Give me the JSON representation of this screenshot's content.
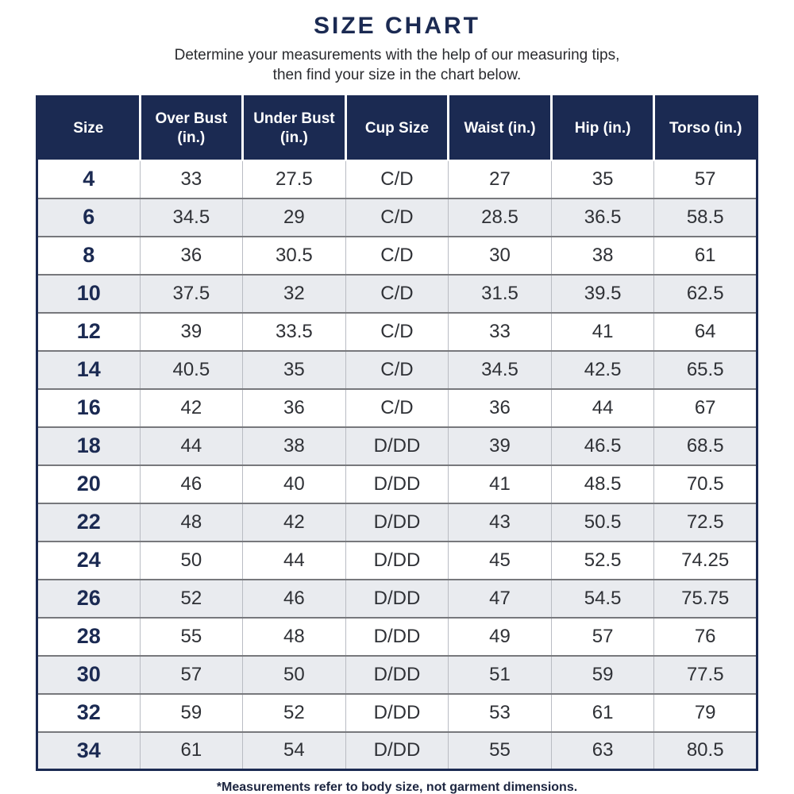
{
  "title": "SIZE CHART",
  "subtitle_line1": "Determine your measurements with the help of our measuring tips,",
  "subtitle_line2": "then find your size in the chart below.",
  "footnote": "*Measurements refer to body size, not garment dimensions.",
  "colors": {
    "header_bg": "#1b2a52",
    "header_text": "#ffffff",
    "title_navy": "#1b2a52",
    "stripe_row": "#e9ebef",
    "row_divider": "#77787c",
    "cell_divider": "#b9bcc3",
    "body_text": "#2f3136"
  },
  "chart_data": {
    "type": "table",
    "title": "SIZE CHART",
    "columns": [
      "Size",
      "Over Bust (in.)",
      "Under Bust (in.)",
      "Cup Size",
      "Waist (in.)",
      "Hip (in.)",
      "Torso (in.)"
    ],
    "rows": [
      [
        "4",
        "33",
        "27.5",
        "C/D",
        "27",
        "35",
        "57"
      ],
      [
        "6",
        "34.5",
        "29",
        "C/D",
        "28.5",
        "36.5",
        "58.5"
      ],
      [
        "8",
        "36",
        "30.5",
        "C/D",
        "30",
        "38",
        "61"
      ],
      [
        "10",
        "37.5",
        "32",
        "C/D",
        "31.5",
        "39.5",
        "62.5"
      ],
      [
        "12",
        "39",
        "33.5",
        "C/D",
        "33",
        "41",
        "64"
      ],
      [
        "14",
        "40.5",
        "35",
        "C/D",
        "34.5",
        "42.5",
        "65.5"
      ],
      [
        "16",
        "42",
        "36",
        "C/D",
        "36",
        "44",
        "67"
      ],
      [
        "18",
        "44",
        "38",
        "D/DD",
        "39",
        "46.5",
        "68.5"
      ],
      [
        "20",
        "46",
        "40",
        "D/DD",
        "41",
        "48.5",
        "70.5"
      ],
      [
        "22",
        "48",
        "42",
        "D/DD",
        "43",
        "50.5",
        "72.5"
      ],
      [
        "24",
        "50",
        "44",
        "D/DD",
        "45",
        "52.5",
        "74.25"
      ],
      [
        "26",
        "52",
        "46",
        "D/DD",
        "47",
        "54.5",
        "75.75"
      ],
      [
        "28",
        "55",
        "48",
        "D/DD",
        "49",
        "57",
        "76"
      ],
      [
        "30",
        "57",
        "50",
        "D/DD",
        "51",
        "59",
        "77.5"
      ],
      [
        "32",
        "59",
        "52",
        "D/DD",
        "53",
        "61",
        "79"
      ],
      [
        "34",
        "61",
        "54",
        "D/DD",
        "55",
        "63",
        "80.5"
      ]
    ]
  }
}
